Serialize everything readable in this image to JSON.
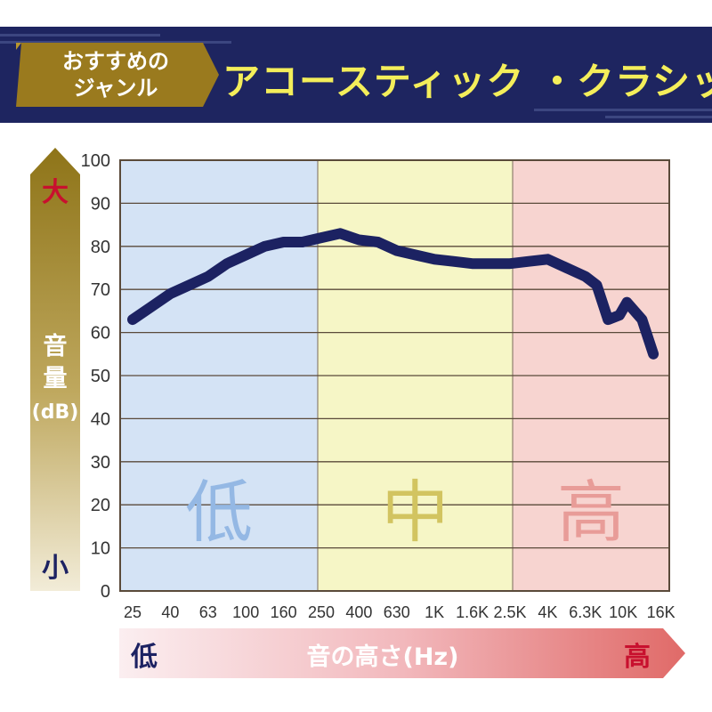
{
  "header": {
    "tag_line1": "おすすめの",
    "tag_line2": "ジャンル",
    "genre": "アコースティック ・クラシック"
  },
  "colors": {
    "header_bg": "#1e2560",
    "tag_gold": "#9a7a1e",
    "genre_text": "#f4ee5a",
    "band_low": "#d4e3f5",
    "band_mid": "#f6f6c6",
    "band_high": "#f7d4d0",
    "curve": "#1c2262",
    "low_char": "#94b8e4",
    "mid_char": "#d2c460",
    "high_char": "#e89c98"
  },
  "chart_data": {
    "type": "line",
    "ylabel": "音量(dB)",
    "xlabel": "音の高さ(Hz)",
    "ylim": [
      0,
      100
    ],
    "yticks": [
      "0",
      "10",
      "20",
      "30",
      "40",
      "50",
      "60",
      "70",
      "80",
      "90",
      "100"
    ],
    "xticks": [
      "25",
      "40",
      "63",
      "100",
      "160",
      "250",
      "400",
      "630",
      "1K",
      "1.6K",
      "2.5K",
      "4K",
      "6.3K",
      "10K",
      "16K"
    ],
    "grid": true,
    "bands": [
      {
        "label": "低",
        "from": 0,
        "to": 5
      },
      {
        "label": "中",
        "from": 5,
        "to": 10
      },
      {
        "label": "高",
        "from": 10,
        "to": 14
      }
    ],
    "y_scale_labels": {
      "top": "大",
      "bottom": "小"
    },
    "x_scale_labels": {
      "left": "低",
      "right": "高"
    },
    "series": [
      {
        "x": [
          0,
          0.5,
          1,
          1.5,
          2,
          2.5,
          3,
          3.5,
          4,
          4.5,
          5,
          5.5,
          6,
          6.5,
          7,
          7.5,
          8,
          8.5,
          9,
          9.5,
          10,
          10.5,
          11,
          11.5,
          12,
          12.3,
          12.6,
          12.9,
          13.1,
          13.5,
          13.8
        ],
        "values": [
          63,
          66,
          69,
          71,
          73,
          76,
          78,
          80,
          81,
          81,
          82,
          83,
          81.5,
          81,
          79,
          78,
          77,
          76.5,
          76,
          76,
          76,
          76.5,
          77,
          75,
          73,
          71,
          63,
          64,
          67,
          63,
          55
        ]
      }
    ]
  }
}
